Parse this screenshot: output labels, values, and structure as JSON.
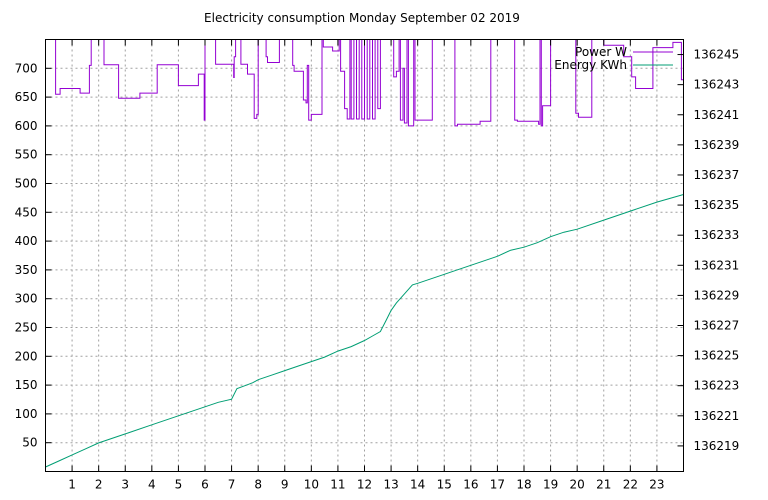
{
  "chart_data": {
    "type": "line",
    "title": "Electricity consumption Monday September 02 2019",
    "xlabel": "",
    "ylabel": "",
    "y2label": "",
    "xlim": [
      0,
      24
    ],
    "x_ticks": [
      "1",
      "2",
      "3",
      "4",
      "5",
      "6",
      "7",
      "8",
      "9",
      "10",
      "11",
      "12",
      "13",
      "14",
      "15",
      "16",
      "17",
      "18",
      "19",
      "20",
      "21",
      "22",
      "23"
    ],
    "ylim": [
      0,
      750
    ],
    "y_ticks": [
      50,
      100,
      150,
      200,
      250,
      300,
      350,
      400,
      450,
      500,
      550,
      600,
      650,
      700
    ],
    "y2lim": [
      136217.3,
      136246
    ],
    "y2_ticks": [
      136219,
      136221,
      136223,
      136225,
      136227,
      136229,
      136231,
      136233,
      136235,
      136237,
      136239,
      136241,
      136243,
      136245
    ],
    "grid": true,
    "legend_position": "top-right",
    "colors": {
      "power": "#9400d3",
      "energy": "#009e73"
    },
    "series": [
      {
        "name": "Power W",
        "axis": "left",
        "step": true,
        "points": [
          [
            0.0,
            750
          ],
          [
            0.35,
            750
          ],
          [
            0.38,
            655
          ],
          [
            0.55,
            665
          ],
          [
            1.2,
            665
          ],
          [
            1.3,
            657
          ],
          [
            1.6,
            657
          ],
          [
            1.65,
            705
          ],
          [
            1.72,
            750
          ],
          [
            2.15,
            750
          ],
          [
            2.2,
            706
          ],
          [
            2.65,
            706
          ],
          [
            2.75,
            648
          ],
          [
            3.5,
            648
          ],
          [
            3.55,
            657
          ],
          [
            4.15,
            657
          ],
          [
            4.2,
            706
          ],
          [
            4.95,
            706
          ],
          [
            5.0,
            670
          ],
          [
            5.7,
            670
          ],
          [
            5.75,
            690
          ],
          [
            5.95,
            690
          ],
          [
            5.97,
            610
          ],
          [
            6.0,
            750
          ],
          [
            6.35,
            750
          ],
          [
            6.4,
            707
          ],
          [
            7.05,
            707
          ],
          [
            7.08,
            684
          ],
          [
            7.1,
            720
          ],
          [
            7.15,
            750
          ],
          [
            7.3,
            750
          ],
          [
            7.35,
            707
          ],
          [
            7.55,
            707
          ],
          [
            7.6,
            690
          ],
          [
            7.8,
            690
          ],
          [
            7.85,
            613
          ],
          [
            7.95,
            620
          ],
          [
            8.0,
            750
          ],
          [
            8.25,
            750
          ],
          [
            8.3,
            720
          ],
          [
            8.35,
            710
          ],
          [
            8.75,
            710
          ],
          [
            8.8,
            750
          ],
          [
            9.25,
            750
          ],
          [
            9.3,
            705
          ],
          [
            9.35,
            695
          ],
          [
            9.65,
            695
          ],
          [
            9.7,
            645
          ],
          [
            9.8,
            640
          ],
          [
            9.85,
            705
          ],
          [
            9.9,
            610
          ],
          [
            10.0,
            620
          ],
          [
            10.35,
            620
          ],
          [
            10.4,
            750
          ],
          [
            10.45,
            737
          ],
          [
            10.75,
            737
          ],
          [
            10.8,
            730
          ],
          [
            11.0,
            730
          ],
          [
            11.05,
            750
          ],
          [
            11.1,
            695
          ],
          [
            11.2,
            695
          ],
          [
            11.25,
            630
          ],
          [
            11.35,
            612
          ],
          [
            11.45,
            750
          ],
          [
            11.5,
            612
          ],
          [
            11.6,
            750
          ],
          [
            11.7,
            612
          ],
          [
            11.8,
            750
          ],
          [
            11.9,
            612
          ],
          [
            12.0,
            750
          ],
          [
            12.1,
            612
          ],
          [
            12.2,
            750
          ],
          [
            12.3,
            612
          ],
          [
            12.4,
            750
          ],
          [
            12.5,
            630
          ],
          [
            12.6,
            750
          ],
          [
            13.0,
            750
          ],
          [
            13.05,
            750
          ],
          [
            13.1,
            685
          ],
          [
            13.2,
            695
          ],
          [
            13.3,
            750
          ],
          [
            13.35,
            610
          ],
          [
            13.45,
            700
          ],
          [
            13.5,
            605
          ],
          [
            13.6,
            750
          ],
          [
            13.65,
            600
          ],
          [
            13.8,
            600
          ],
          [
            13.85,
            750
          ],
          [
            13.9,
            610
          ],
          [
            14.5,
            610
          ],
          [
            14.55,
            750
          ],
          [
            15.35,
            750
          ],
          [
            15.4,
            600
          ],
          [
            15.5,
            603
          ],
          [
            16.3,
            603
          ],
          [
            16.35,
            608
          ],
          [
            16.7,
            608
          ],
          [
            16.75,
            750
          ],
          [
            17.6,
            750
          ],
          [
            17.65,
            610
          ],
          [
            17.75,
            608
          ],
          [
            18.5,
            608
          ],
          [
            18.55,
            603
          ],
          [
            18.6,
            750
          ],
          [
            18.65,
            600
          ],
          [
            18.7,
            635
          ],
          [
            18.95,
            635
          ],
          [
            19.0,
            750
          ],
          [
            19.9,
            750
          ],
          [
            19.95,
            622
          ],
          [
            20.05,
            615
          ],
          [
            20.5,
            615
          ],
          [
            20.55,
            750
          ],
          [
            20.95,
            750
          ],
          [
            21.0,
            740
          ],
          [
            21.7,
            740
          ],
          [
            21.75,
            720
          ],
          [
            22.0,
            720
          ],
          [
            22.05,
            685
          ],
          [
            22.2,
            665
          ],
          [
            22.8,
            665
          ],
          [
            22.85,
            736
          ],
          [
            23.55,
            736
          ],
          [
            23.6,
            745
          ],
          [
            23.9,
            745
          ],
          [
            23.92,
            680
          ],
          [
            24.0,
            680
          ]
        ]
      },
      {
        "name": "Energy KWh",
        "axis": "right",
        "step": false,
        "points": [
          [
            0.0,
            136217.6
          ],
          [
            0.5,
            136218.0
          ],
          [
            1.0,
            136218.4
          ],
          [
            1.5,
            136218.8
          ],
          [
            2.0,
            136219.2
          ],
          [
            3.0,
            136219.8
          ],
          [
            4.0,
            136220.4
          ],
          [
            5.0,
            136221.0
          ],
          [
            6.0,
            136221.6
          ],
          [
            6.5,
            136221.9
          ],
          [
            7.0,
            136222.1
          ],
          [
            7.2,
            136222.8
          ],
          [
            7.5,
            136223.0
          ],
          [
            7.8,
            136223.2
          ],
          [
            8.0,
            136223.4
          ],
          [
            8.5,
            136223.7
          ],
          [
            9.0,
            136224.0
          ],
          [
            9.5,
            136224.3
          ],
          [
            10.0,
            136224.6
          ],
          [
            10.5,
            136224.9
          ],
          [
            11.0,
            136225.3
          ],
          [
            11.5,
            136225.6
          ],
          [
            12.0,
            136226.0
          ],
          [
            12.3,
            136226.3
          ],
          [
            12.6,
            136226.6
          ],
          [
            12.8,
            136227.3
          ],
          [
            13.0,
            136228.0
          ],
          [
            13.2,
            136228.5
          ],
          [
            13.5,
            136229.1
          ],
          [
            13.8,
            136229.7
          ],
          [
            14.0,
            136229.8
          ],
          [
            14.5,
            136230.1
          ],
          [
            15.0,
            136230.4
          ],
          [
            15.5,
            136230.7
          ],
          [
            16.0,
            136231.0
          ],
          [
            16.5,
            136231.3
          ],
          [
            17.0,
            136231.6
          ],
          [
            17.5,
            136232.0
          ],
          [
            18.0,
            136232.2
          ],
          [
            18.5,
            136232.5
          ],
          [
            19.0,
            136232.9
          ],
          [
            19.5,
            136233.2
          ],
          [
            20.0,
            136233.4
          ],
          [
            21.0,
            136234.0
          ],
          [
            22.0,
            136234.6
          ],
          [
            23.0,
            136235.2
          ],
          [
            24.0,
            136235.7
          ]
        ]
      }
    ]
  }
}
